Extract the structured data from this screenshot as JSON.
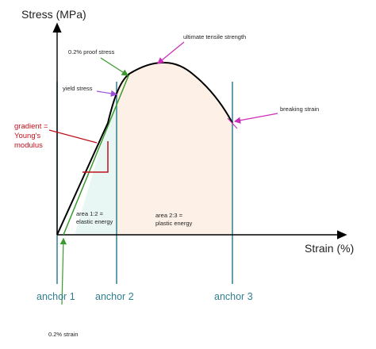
{
  "diagram": {
    "y_axis_label": "Stress (MPa)",
    "x_axis_label": "Strain (%)",
    "annotations": {
      "proof_stress": "0.2% proof stress",
      "uts": "ultimate tensile strength",
      "yield_stress": "yield stress",
      "breaking_strain": "breaking strain",
      "gradient_line1": "gradient =",
      "gradient_line2": "Young's",
      "gradient_line3": "modulus",
      "area12_line1": "area 1:2 =",
      "area12_line2": "elastic energy",
      "area23_line1": "area 2:3 =",
      "area23_line2": "plastic energy",
      "strain_offset": "0.2% strain"
    },
    "anchors": [
      "anchor 1",
      "anchor 2",
      "anchor 3"
    ],
    "colors": {
      "curve": "#000000",
      "anchor_lines": "#2f7f8f",
      "offset_line": "#3a9a2e",
      "red_annotation": "#c0111b",
      "magenta_arrows": "#cc2db8",
      "purple_arrow": "#9b4fd6",
      "elastic_region": "#e8f7f4",
      "plastic_region": "#fdf0e6"
    }
  }
}
